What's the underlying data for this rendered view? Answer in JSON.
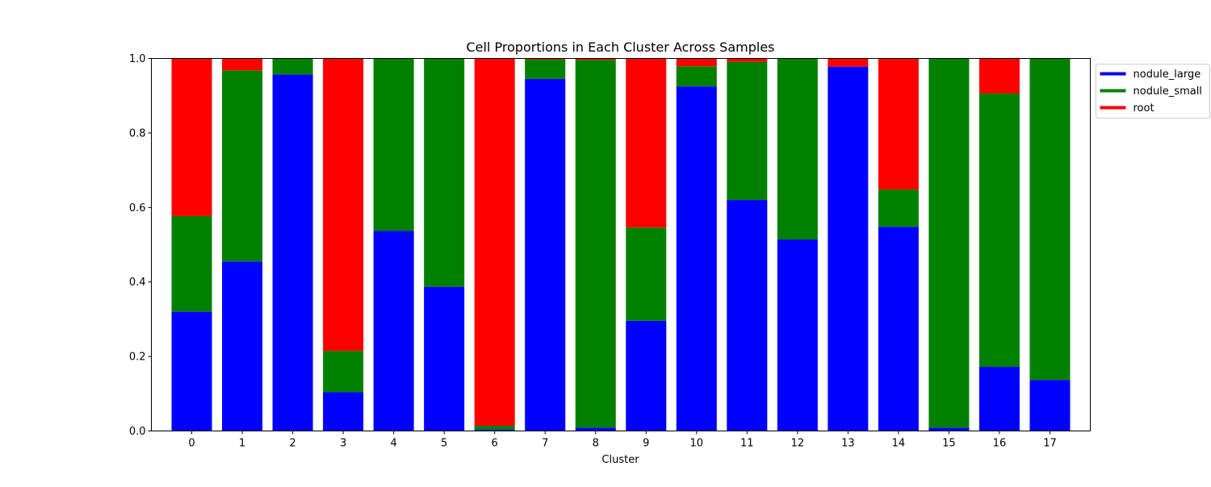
{
  "chart_data": {
    "type": "bar",
    "stacked": true,
    "title": "Cell Proportions in Each Cluster Across Samples",
    "xlabel": "Cluster",
    "ylabel": "",
    "ylim": [
      0,
      1
    ],
    "yticks": [
      "0.0",
      "0.2",
      "0.4",
      "0.6",
      "0.8",
      "1.0"
    ],
    "categories": [
      "0",
      "1",
      "2",
      "3",
      "4",
      "5",
      "6",
      "7",
      "8",
      "9",
      "10",
      "11",
      "12",
      "13",
      "14",
      "15",
      "16",
      "17"
    ],
    "grid": false,
    "legend_position": "outside-top-right",
    "series": [
      {
        "name": "nodule_large",
        "color": "#0000ff",
        "values": [
          0.32,
          0.455,
          0.957,
          0.104,
          0.537,
          0.387,
          0.004,
          0.945,
          0.009,
          0.296,
          0.925,
          0.62,
          0.514,
          0.978,
          0.548,
          0.009,
          0.172,
          0.137
        ]
      },
      {
        "name": "nodule_small",
        "color": "#008000",
        "values": [
          0.257,
          0.513,
          0.043,
          0.111,
          0.463,
          0.613,
          0.01,
          0.052,
          0.987,
          0.25,
          0.054,
          0.371,
          0.486,
          0.0,
          0.1,
          0.991,
          0.734,
          0.863
        ]
      },
      {
        "name": "root",
        "color": "#ff0000",
        "values": [
          0.423,
          0.032,
          0.0,
          0.785,
          0.0,
          0.0,
          0.986,
          0.003,
          0.004,
          0.454,
          0.021,
          0.009,
          0.0,
          0.022,
          0.352,
          0.0,
          0.094,
          0.0
        ]
      }
    ]
  }
}
